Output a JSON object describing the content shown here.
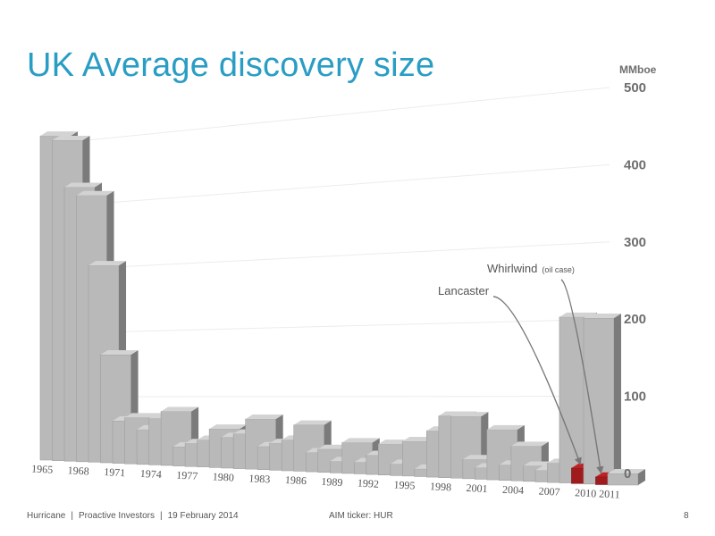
{
  "slide": {
    "title": "UK Average discovery size",
    "footer": {
      "company": "Hurricane",
      "event": "Proactive Investors",
      "date": "19 February 2014",
      "separator": "|",
      "ticker": "AIM ticker: HUR",
      "page": "8"
    }
  },
  "chart_data": {
    "type": "bar",
    "title": "UK Average discovery size",
    "ylabel": "MMboe",
    "xlabel": "",
    "ylim": [
      0,
      500
    ],
    "yticks": [
      0,
      100,
      200,
      300,
      400,
      500
    ],
    "grid": true,
    "categories": [
      "1965",
      "1966",
      "1967",
      "1968",
      "1969",
      "1970",
      "1971",
      "1972",
      "1973",
      "1974",
      "1975",
      "1976",
      "1977",
      "1978",
      "1979",
      "1980",
      "1981",
      "1982",
      "1983",
      "1984",
      "1985",
      "1986",
      "1987",
      "1988",
      "1989",
      "1990",
      "1991",
      "1992",
      "1993",
      "1994",
      "1995",
      "1996",
      "1997",
      "1998",
      "1999",
      "2000",
      "2001",
      "2002",
      "2003",
      "2004",
      "2005",
      "2006",
      "2007",
      "2008",
      "2009",
      "2010",
      "2011",
      "2012"
    ],
    "xtick_labels": [
      "1965",
      "1968",
      "1971",
      "1974",
      "1977",
      "1980",
      "1983",
      "1986",
      "1989",
      "1992",
      "1995",
      "1998",
      "2001",
      "2004",
      "2007",
      "2010",
      "2011"
    ],
    "xtick_years": [
      "1965",
      "1968",
      "1971",
      "1974",
      "1977",
      "1980",
      "1983",
      "1986",
      "1989",
      "1992",
      "1995",
      "1998",
      "2001",
      "2004",
      "2007",
      "2010",
      "2012"
    ],
    "series": [
      {
        "values": [
          420,
          415,
          355,
          345,
          255,
          140,
          55,
          60,
          45,
          60,
          70,
          25,
          30,
          35,
          50,
          40,
          45,
          65,
          30,
          35,
          40,
          60,
          25,
          30,
          15,
          40,
          15,
          25,
          40,
          15,
          45,
          10,
          60,
          80,
          80,
          25,
          15,
          65,
          20,
          45,
          20,
          15,
          25,
          215,
          20,
          215,
          10,
          15
        ],
        "highlight_color": "#a81c1f",
        "bar_color": "#c7c7c7"
      }
    ],
    "annotations": [
      {
        "text": "Lancaster",
        "year": "2009"
      },
      {
        "text": "Whirlwind",
        "suffix": "(oil case)",
        "year": "2011"
      }
    ]
  }
}
